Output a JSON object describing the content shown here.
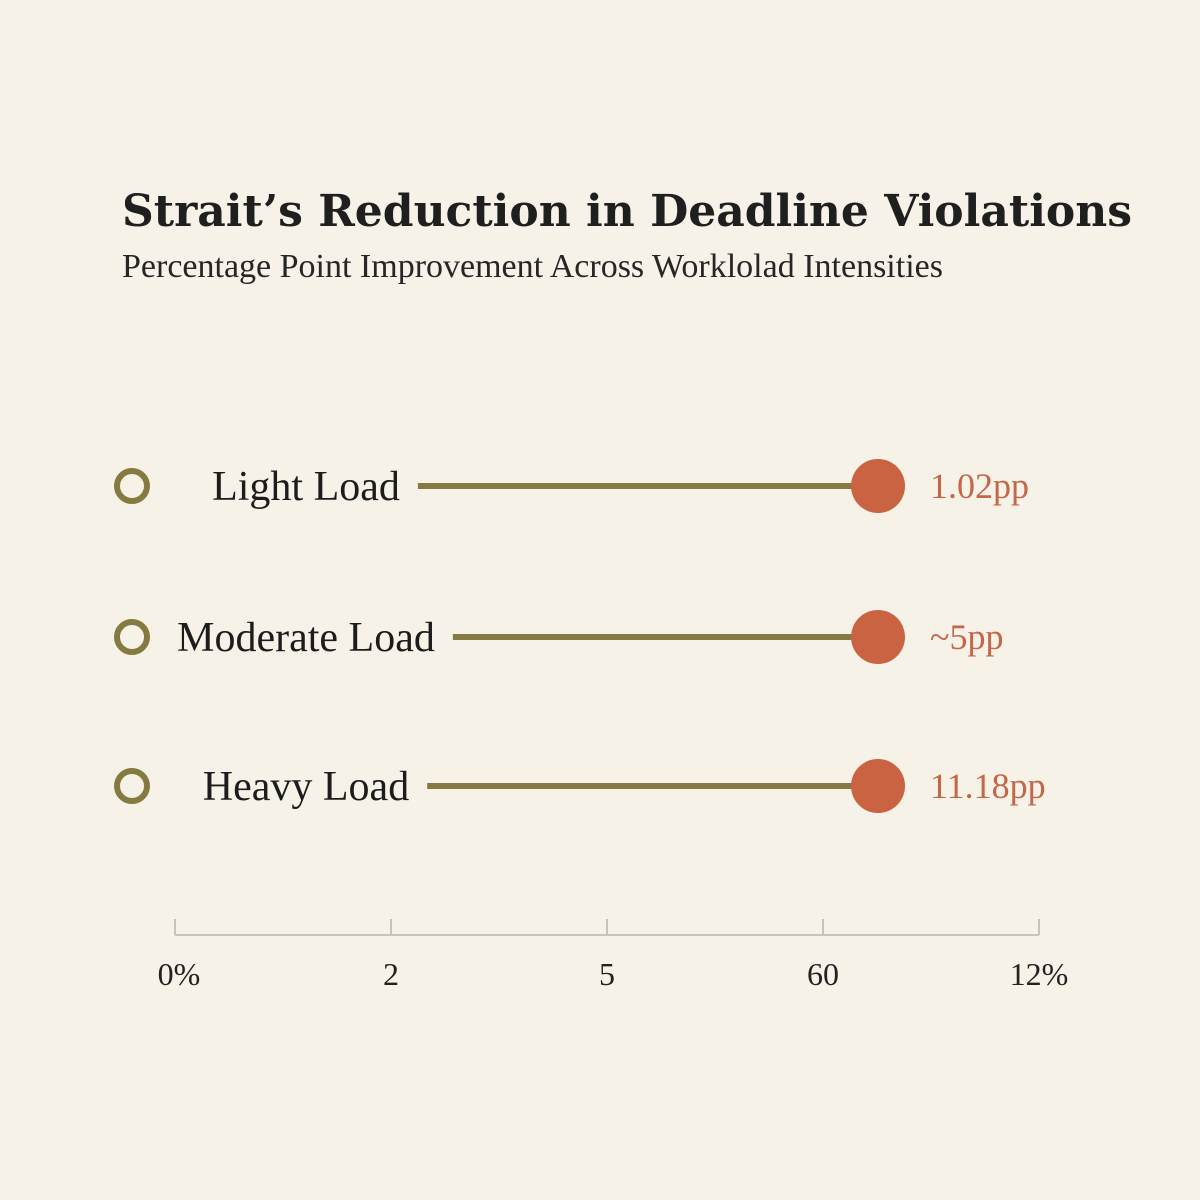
{
  "chart_data": {
    "type": "dot-plot",
    "title": "Strait’s Reduction in Deadline Violations",
    "subtitle": "Percentage Point Improvement Across Worklolad Intensities",
    "categories": [
      "Light Load",
      "Moderate Load",
      "Heavy Load"
    ],
    "series": [
      {
        "value_labels": [
          "1.02pp",
          "~5pp",
          "11.18pp"
        ]
      }
    ],
    "x_ticks": [
      "0%",
      "2",
      "5",
      "60",
      "12%"
    ],
    "grid": false,
    "legend": "none",
    "colors": {
      "background": "#f6f2e8",
      "stem": "#857a3f",
      "dot": "#c96342",
      "value_text": "#c46647",
      "marker_ring": "#857a3f",
      "axis": "#c8c4ba"
    }
  }
}
